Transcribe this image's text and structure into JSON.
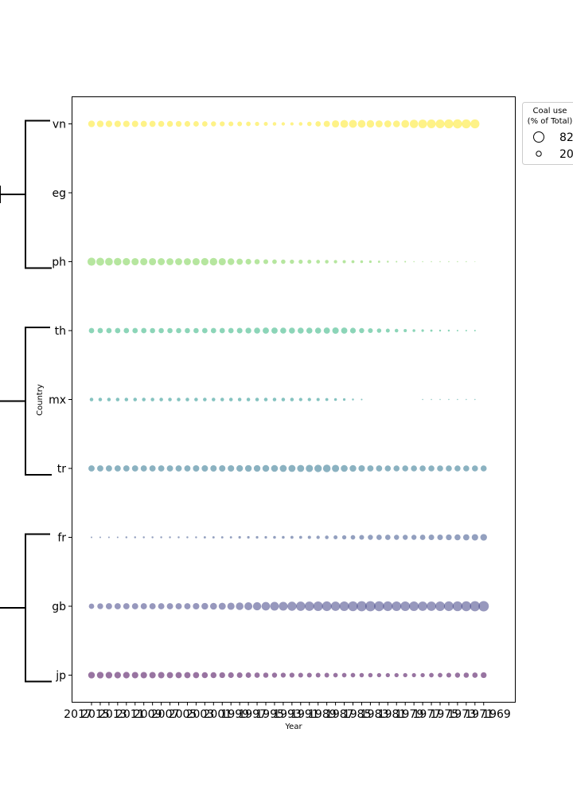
{
  "chart_data": {
    "type": "scatter",
    "title": "",
    "xlabel": "Year",
    "ylabel": "Country",
    "countries": [
      "vn",
      "eg",
      "ph",
      "th",
      "mx",
      "tr",
      "fr",
      "gb",
      "jp"
    ],
    "x_tick_labels": [
      "2017",
      "2015",
      "2013",
      "2011",
      "2009",
      "2007",
      "2005",
      "2003",
      "2001",
      "1999",
      "1997",
      "1995",
      "1993",
      "1991",
      "1989",
      "1987",
      "1985",
      "1983",
      "1981",
      "1979",
      "1977",
      "1975",
      "1973",
      "1971",
      "1969"
    ],
    "years_left_to_right": [
      2014,
      2013,
      2012,
      2011,
      2010,
      2009,
      2008,
      2007,
      2006,
      2005,
      2004,
      2003,
      2002,
      2001,
      2000,
      1999,
      1998,
      1997,
      1996,
      1995,
      1994,
      1993,
      1992,
      1991,
      1990,
      1989,
      1988,
      1987,
      1986,
      1985,
      1984,
      1983,
      1982,
      1981,
      1980,
      1979,
      1978,
      1977,
      1976,
      1975,
      1974,
      1973,
      1972,
      1971,
      1970,
      1969
    ],
    "series": [
      {
        "country": "vn",
        "color": "#fde725",
        "values": [
          34,
          34,
          33,
          32,
          32,
          31,
          30,
          29,
          28,
          27,
          26,
          25,
          23,
          22,
          20,
          19,
          18,
          17,
          16,
          14,
          12,
          10,
          9,
          8,
          10,
          15,
          22,
          30,
          40,
          46,
          48,
          45,
          43,
          38,
          37,
          36,
          46,
          54,
          57,
          58,
          60,
          62,
          64,
          62,
          62,
          null
        ]
      },
      {
        "country": "eg",
        "color": "#d4e829",
        "values": [
          null,
          null,
          null,
          null,
          null,
          null,
          null,
          null,
          null,
          null,
          null,
          null,
          null,
          null,
          null,
          null,
          null,
          null,
          null,
          null,
          null,
          null,
          null,
          null,
          null,
          null,
          null,
          null,
          null,
          null,
          null,
          null,
          null,
          null,
          null,
          null,
          null,
          null,
          null,
          null,
          null,
          null,
          null,
          null,
          null,
          null
        ]
      },
      {
        "country": "ph",
        "color": "#7ad151",
        "values": [
          50,
          48,
          46,
          44,
          42,
          40,
          40,
          40,
          39,
          38,
          38,
          38,
          40,
          42,
          44,
          40,
          35,
          30,
          25,
          21,
          18,
          16,
          15,
          14,
          13,
          12,
          11,
          10,
          9,
          8,
          7,
          6,
          5,
          4,
          3,
          2,
          2,
          1,
          1,
          1,
          1,
          1,
          1,
          1,
          0.5,
          null
        ]
      },
      {
        "country": "th",
        "color": "#2db27d",
        "values": [
          22,
          22,
          22,
          22,
          22,
          22,
          22,
          21,
          21,
          21,
          21,
          21,
          21,
          22,
          22,
          22,
          22,
          24,
          26,
          28,
          30,
          30,
          28,
          28,
          28,
          28,
          28,
          30,
          32,
          30,
          25,
          20,
          18,
          15,
          12,
          10,
          8,
          6,
          5,
          4,
          3,
          3,
          2,
          2,
          2,
          null
        ]
      },
      {
        "country": "mx",
        "color": "#21918c",
        "values": [
          10,
          10,
          10,
          10,
          10,
          10,
          10,
          10,
          10,
          10,
          10,
          10,
          10,
          10,
          10,
          10,
          10,
          10,
          10,
          10,
          10,
          10,
          10,
          10,
          9,
          9,
          8,
          7,
          6,
          5,
          3,
          2,
          null,
          null,
          null,
          null,
          null,
          null,
          1,
          1,
          1,
          1,
          1,
          1,
          1,
          null
        ]
      },
      {
        "country": "tr",
        "color": "#2c728e",
        "values": [
          30,
          30,
          30,
          30,
          30,
          30,
          30,
          30,
          30,
          30,
          30,
          30,
          31,
          31,
          31,
          31,
          32,
          33,
          34,
          34,
          35,
          36,
          37,
          38,
          38,
          40,
          42,
          44,
          40,
          36,
          34,
          32,
          30,
          29,
          28,
          28,
          28,
          28,
          28,
          28,
          28,
          28,
          28,
          28,
          28,
          28
        ]
      },
      {
        "country": "fr",
        "color": "#3b528b",
        "values": [
          2,
          2,
          2,
          2,
          3,
          3,
          3,
          3,
          3,
          3,
          3,
          3,
          3,
          4,
          4,
          4,
          4,
          5,
          5,
          5,
          5,
          6,
          6,
          7,
          7,
          8,
          9,
          10,
          12,
          14,
          16,
          18,
          20,
          22,
          22,
          20,
          20,
          20,
          22,
          24,
          24,
          26,
          28,
          30,
          32,
          34
        ]
      },
      {
        "country": "gb",
        "color": "#414487",
        "values": [
          22,
          26,
          30,
          30,
          30,
          30,
          30,
          30,
          30,
          30,
          30,
          30,
          32,
          34,
          36,
          38,
          40,
          44,
          48,
          52,
          56,
          58,
          60,
          64,
          66,
          68,
          70,
          72,
          66,
          70,
          74,
          78,
          80,
          76,
          72,
          70,
          70,
          70,
          68,
          68,
          70,
          72,
          74,
          76,
          78,
          82
        ]
      },
      {
        "country": "jp",
        "color": "#440154",
        "values": [
          34,
          34,
          34,
          33,
          33,
          32,
          32,
          31,
          31,
          30,
          30,
          30,
          29,
          28,
          27,
          26,
          25,
          24,
          23,
          22,
          21,
          20,
          19,
          19,
          18,
          18,
          17,
          17,
          16,
          16,
          16,
          15,
          15,
          14,
          14,
          14,
          14,
          13,
          14,
          16,
          16,
          18,
          20,
          21,
          22,
          26
        ]
      }
    ],
    "point_alpha": 0.55,
    "dendrogram": {
      "clusters": [
        {
          "members": [
            "vn",
            "eg",
            "ph"
          ]
        },
        {
          "members": [
            "th",
            "mx",
            "tr"
          ]
        },
        {
          "members": [
            "fr",
            "gb",
            "jp"
          ]
        }
      ]
    },
    "legend": {
      "title_line1": "Coal use",
      "title_line2": "(% of Total)",
      "entries": [
        "82",
        "20"
      ],
      "entry_values": [
        82,
        20
      ],
      "placement": "top-right, outside plot"
    },
    "size_range": [
      0,
      82
    ],
    "grid": false
  }
}
